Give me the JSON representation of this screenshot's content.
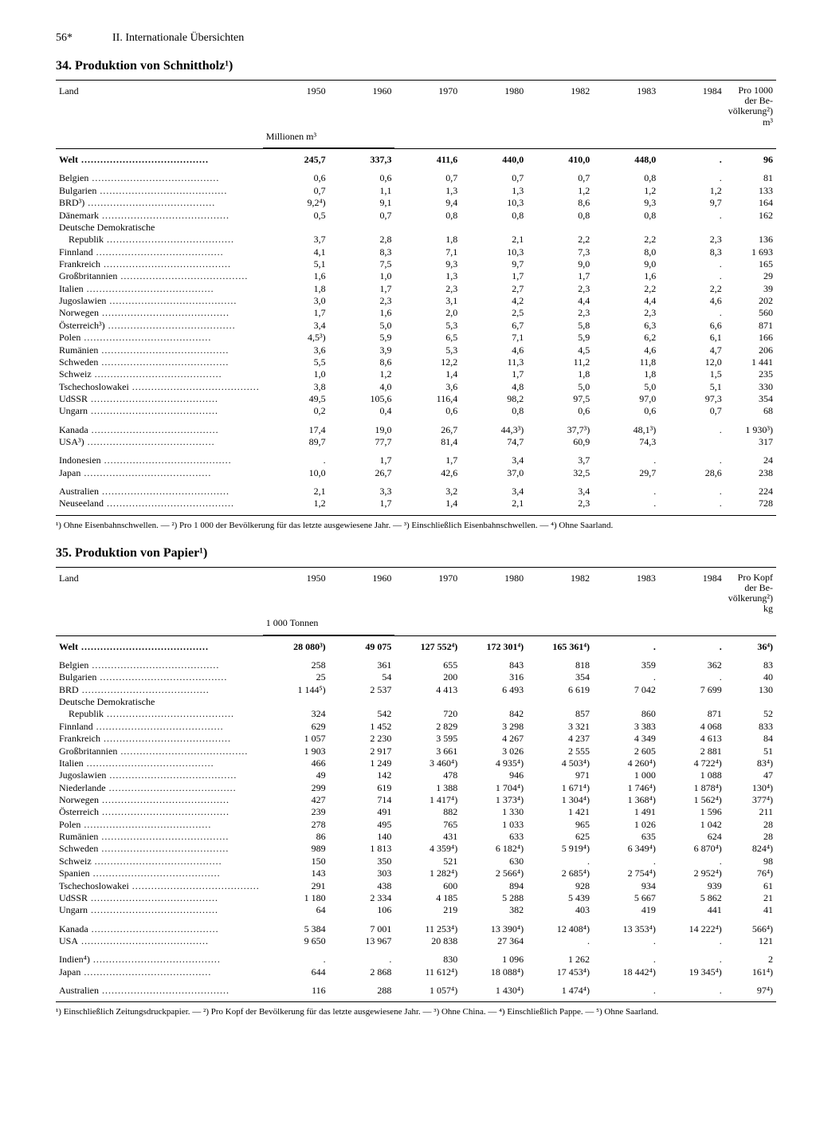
{
  "page": {
    "number": "56*",
    "section": "II. Internationale Übersichten"
  },
  "tables": [
    {
      "title": "34. Produktion von Schnittholz¹)",
      "unit": "Millionen m³",
      "last_header": "Pro 1000 der Be- völkerung²) m³",
      "years": [
        "1950",
        "1960",
        "1970",
        "1980",
        "1982",
        "1983",
        "1984"
      ],
      "col_label": "Land",
      "rows": [
        {
          "g": 0,
          "b": 1,
          "l": "Welt",
          "v": [
            "245,7",
            "337,3",
            "411,6",
            "440,0",
            "410,0",
            "448,0",
            "."
          ],
          "p": "96"
        },
        {
          "g": 1,
          "l": "Belgien",
          "v": [
            "0,6",
            "0,6",
            "0,7",
            "0,7",
            "0,7",
            "0,8",
            "."
          ],
          "p": "81"
        },
        {
          "g": 1,
          "l": "Bulgarien",
          "v": [
            "0,7",
            "1,1",
            "1,3",
            "1,3",
            "1,2",
            "1,2",
            "1,2"
          ],
          "p": "133"
        },
        {
          "g": 1,
          "l": "BRD³)",
          "v": [
            "9,2⁴)",
            "9,1",
            "9,4",
            "10,3",
            "8,6",
            "9,3",
            "9,7"
          ],
          "p": "164"
        },
        {
          "g": 1,
          "l": "Dänemark",
          "v": [
            "0,5",
            "0,7",
            "0,8",
            "0,8",
            "0,8",
            "0,8",
            "."
          ],
          "p": "162"
        },
        {
          "g": 1,
          "nd": 1,
          "l": "Deutsche Demokratische",
          "v": [
            "",
            "",
            "",
            "",
            "",
            "",
            ""
          ],
          "p": ""
        },
        {
          "g": 1,
          "l": "    Republik",
          "v": [
            "3,7",
            "2,8",
            "1,8",
            "2,1",
            "2,2",
            "2,2",
            "2,3"
          ],
          "p": "136"
        },
        {
          "g": 1,
          "l": "Finnland",
          "v": [
            "4,1",
            "8,3",
            "7,1",
            "10,3",
            "7,3",
            "8,0",
            "8,3"
          ],
          "p": "1 693"
        },
        {
          "g": 1,
          "l": "Frankreich",
          "v": [
            "5,1",
            "7,5",
            "9,3",
            "9,7",
            "9,0",
            "9,0",
            "."
          ],
          "p": "165"
        },
        {
          "g": 1,
          "l": "Großbritannien",
          "v": [
            "1,6",
            "1,0",
            "1,3",
            "1,7",
            "1,7",
            "1,6",
            "."
          ],
          "p": "29"
        },
        {
          "g": 1,
          "l": "Italien",
          "v": [
            "1,8",
            "1,7",
            "2,3",
            "2,7",
            "2,3",
            "2,2",
            "2,2"
          ],
          "p": "39"
        },
        {
          "g": 1,
          "l": "Jugoslawien",
          "v": [
            "3,0",
            "2,3",
            "3,1",
            "4,2",
            "4,4",
            "4,4",
            "4,6"
          ],
          "p": "202"
        },
        {
          "g": 1,
          "l": "Norwegen",
          "v": [
            "1,7",
            "1,6",
            "2,0",
            "2,5",
            "2,3",
            "2,3",
            "."
          ],
          "p": "560"
        },
        {
          "g": 1,
          "l": "Österreich³)",
          "v": [
            "3,4",
            "5,0",
            "5,3",
            "6,7",
            "5,8",
            "6,3",
            "6,6"
          ],
          "p": "871"
        },
        {
          "g": 1,
          "l": "Polen",
          "v": [
            "4,5³)",
            "5,9",
            "6,5",
            "7,1",
            "5,9",
            "6,2",
            "6,1"
          ],
          "p": "166"
        },
        {
          "g": 1,
          "l": "Rumänien",
          "v": [
            "3,6",
            "3,9",
            "5,3",
            "4,6",
            "4,5",
            "4,6",
            "4,7"
          ],
          "p": "206"
        },
        {
          "g": 1,
          "l": "Schweden",
          "v": [
            "5,5",
            "8,6",
            "12,2",
            "11,3",
            "11,2",
            "11,8",
            "12,0"
          ],
          "p": "1 441"
        },
        {
          "g": 1,
          "l": "Schweiz",
          "v": [
            "1,0",
            "1,2",
            "1,4",
            "1,7",
            "1,8",
            "1,8",
            "1,5"
          ],
          "p": "235"
        },
        {
          "g": 1,
          "l": "Tschechoslowakei",
          "v": [
            "3,8",
            "4,0",
            "3,6",
            "4,8",
            "5,0",
            "5,0",
            "5,1"
          ],
          "p": "330"
        },
        {
          "g": 1,
          "l": "UdSSR",
          "v": [
            "49,5",
            "105,6",
            "116,4",
            "98,2",
            "97,5",
            "97,0",
            "97,3"
          ],
          "p": "354"
        },
        {
          "g": 1,
          "l": "Ungarn",
          "v": [
            "0,2",
            "0,4",
            "0,6",
            "0,8",
            "0,6",
            "0,6",
            "0,7"
          ],
          "p": "68"
        },
        {
          "g": 2,
          "l": "Kanada",
          "v": [
            "17,4",
            "19,0",
            "26,7",
            "44,3³)",
            "37,7³)",
            "48,1³)",
            "."
          ],
          "p": "1 930³)"
        },
        {
          "g": 2,
          "l": "USA³)",
          "v": [
            "89,7",
            "77,7",
            "81,4",
            "74,7",
            "60,9",
            "74,3",
            ""
          ],
          "p": "317"
        },
        {
          "g": 3,
          "l": "Indonesien",
          "v": [
            ".",
            "1,7",
            "1,7",
            "3,4",
            "3,7",
            ".",
            "."
          ],
          "p": "24"
        },
        {
          "g": 3,
          "l": "Japan",
          "v": [
            "10,0",
            "26,7",
            "42,6",
            "37,0",
            "32,5",
            "29,7",
            "28,6"
          ],
          "p": "238"
        },
        {
          "g": 4,
          "l": "Australien",
          "v": [
            "2,1",
            "3,3",
            "3,2",
            "3,4",
            "3,4",
            ".",
            "."
          ],
          "p": "224"
        },
        {
          "g": 4,
          "l": "Neuseeland",
          "v": [
            "1,2",
            "1,7",
            "1,4",
            "2,1",
            "2,3",
            ".",
            "."
          ],
          "p": "728"
        }
      ],
      "footnote": "¹) Ohne Eisenbahnschwellen. — ²) Pro 1 000 der Bevölkerung für das letzte ausgewiesene Jahr. — ³) Einschließlich Eisenbahnschwellen. — ⁴) Ohne Saarland."
    },
    {
      "title": "35. Produktion von Papier¹)",
      "unit": "1 000 Tonnen",
      "last_header": "Pro Kopf der Be- völkerung²) kg",
      "years": [
        "1950",
        "1960",
        "1970",
        "1980",
        "1982",
        "1983",
        "1984"
      ],
      "col_label": "Land",
      "rows": [
        {
          "g": 0,
          "b": 1,
          "l": "Welt",
          "v": [
            "28 080³)",
            "49 075",
            "127 552⁴)",
            "172 301⁴)",
            "165 361⁴)",
            ".",
            "."
          ],
          "p": "36⁴)"
        },
        {
          "g": 1,
          "l": "Belgien",
          "v": [
            "258",
            "361",
            "655",
            "843",
            "818",
            "359",
            "362"
          ],
          "p": "83"
        },
        {
          "g": 1,
          "l": "Bulgarien",
          "v": [
            "25",
            "54",
            "200",
            "316",
            "354",
            ".",
            "."
          ],
          "p": "40"
        },
        {
          "g": 1,
          "l": "BRD",
          "v": [
            "1 144⁵)",
            "2 537",
            "4 413",
            "6 493",
            "6 619",
            "7 042",
            "7 699"
          ],
          "p": "130"
        },
        {
          "g": 1,
          "nd": 1,
          "l": "Deutsche Demokratische",
          "v": [
            "",
            "",
            "",
            "",
            "",
            "",
            ""
          ],
          "p": ""
        },
        {
          "g": 1,
          "l": "    Republik",
          "v": [
            "324",
            "542",
            "720",
            "842",
            "857",
            "860",
            "871"
          ],
          "p": "52"
        },
        {
          "g": 1,
          "l": "Finnland",
          "v": [
            "629",
            "1 452",
            "2 829",
            "3 298",
            "3 321",
            "3 383",
            "4 068"
          ],
          "p": "833"
        },
        {
          "g": 1,
          "l": "Frankreich",
          "v": [
            "1 057",
            "2 230",
            "3 595",
            "4 267",
            "4 237",
            "4 349",
            "4 613"
          ],
          "p": "84"
        },
        {
          "g": 1,
          "l": "Großbritannien",
          "v": [
            "1 903",
            "2 917",
            "3 661",
            "3 026",
            "2 555",
            "2 605",
            "2 881"
          ],
          "p": "51"
        },
        {
          "g": 1,
          "l": "Italien",
          "v": [
            "466",
            "1 249",
            "3 460⁴)",
            "4 935⁴)",
            "4 503⁴)",
            "4 260⁴)",
            "4 722⁴)"
          ],
          "p": "83⁴)"
        },
        {
          "g": 1,
          "l": "Jugoslawien",
          "v": [
            "49",
            "142",
            "478",
            "946",
            "971",
            "1 000",
            "1 088"
          ],
          "p": "47"
        },
        {
          "g": 1,
          "l": "Niederlande",
          "v": [
            "299",
            "619",
            "1 388",
            "1 704⁴)",
            "1 671⁴)",
            "1 746⁴)",
            "1 878⁴)"
          ],
          "p": "130⁴)"
        },
        {
          "g": 1,
          "l": "Norwegen",
          "v": [
            "427",
            "714",
            "1 417⁴)",
            "1 373⁴)",
            "1 304⁴)",
            "1 368⁴)",
            "1 562⁴)"
          ],
          "p": "377⁴)"
        },
        {
          "g": 1,
          "l": "Österreich",
          "v": [
            "239",
            "491",
            "882",
            "1 330",
            "1 421",
            "1 491",
            "1 596"
          ],
          "p": "211"
        },
        {
          "g": 1,
          "l": "Polen",
          "v": [
            "278",
            "495",
            "765",
            "1 033",
            "965",
            "1 026",
            "1 042"
          ],
          "p": "28"
        },
        {
          "g": 1,
          "l": "Rumänien",
          "v": [
            "86",
            "140",
            "431",
            "633",
            "625",
            "635",
            "624"
          ],
          "p": "28"
        },
        {
          "g": 1,
          "l": "Schweden",
          "v": [
            "989",
            "1 813",
            "4 359⁴)",
            "6 182⁴)",
            "5 919⁴)",
            "6 349⁴)",
            "6 870⁴)"
          ],
          "p": "824⁴)"
        },
        {
          "g": 1,
          "l": "Schweiz",
          "v": [
            "150",
            "350",
            "521",
            "630",
            ".",
            ".",
            "."
          ],
          "p": "98"
        },
        {
          "g": 1,
          "l": "Spanien",
          "v": [
            "143",
            "303",
            "1 282⁴)",
            "2 566⁴)",
            "2 685⁴)",
            "2 754⁴)",
            "2 952⁴)"
          ],
          "p": "76⁴)"
        },
        {
          "g": 1,
          "l": "Tschechoslowakei",
          "v": [
            "291",
            "438",
            "600",
            "894",
            "928",
            "934",
            "939"
          ],
          "p": "61"
        },
        {
          "g": 1,
          "l": "UdSSR",
          "v": [
            "1 180",
            "2 334",
            "4 185",
            "5 288",
            "5 439",
            "5 667",
            "5 862"
          ],
          "p": "21"
        },
        {
          "g": 1,
          "l": "Ungarn",
          "v": [
            "64",
            "106",
            "219",
            "382",
            "403",
            "419",
            "441"
          ],
          "p": "41"
        },
        {
          "g": 2,
          "l": "Kanada",
          "v": [
            "5 384",
            "7 001",
            "11 253⁴)",
            "13 390⁴)",
            "12 408⁴)",
            "13 353⁴)",
            "14 222⁴)"
          ],
          "p": "566⁴)"
        },
        {
          "g": 2,
          "l": "USA",
          "v": [
            "9 650",
            "13 967",
            "20 838",
            "27 364",
            ".",
            ".",
            "."
          ],
          "p": "121"
        },
        {
          "g": 3,
          "l": "Indien⁴)",
          "v": [
            ".",
            ".",
            "830",
            "1 096",
            "1 262",
            ".",
            "."
          ],
          "p": "2"
        },
        {
          "g": 3,
          "l": "Japan",
          "v": [
            "644",
            "2 868",
            "11 612⁴)",
            "18 088⁴)",
            "17 453⁴)",
            "18 442⁴)",
            "19 345⁴)"
          ],
          "p": "161⁴)"
        },
        {
          "g": 4,
          "l": "Australien",
          "v": [
            "116",
            "288",
            "1 057⁴)",
            "1 430⁴)",
            "1 474⁴)",
            ".",
            "."
          ],
          "p": "97⁴)"
        }
      ],
      "footnote": "¹) Einschließlich Zeitungsdruckpapier. — ²) Pro Kopf der Bevölkerung für das letzte ausgewiesene Jahr. — ³) Ohne China. — ⁴) Einschließlich Pappe. — ⁵) Ohne Saarland."
    }
  ]
}
